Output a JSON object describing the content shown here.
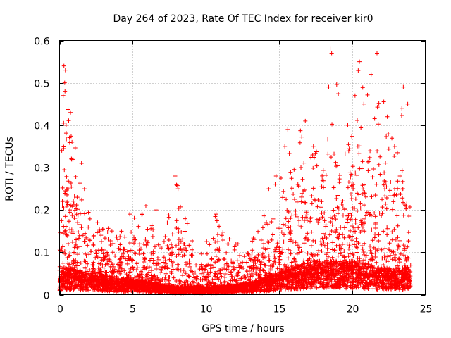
{
  "chart_data": {
    "type": "scatter",
    "title": "Day 264 of 2023, Rate Of TEC Index for receiver kir0",
    "xlabel": "GPS time / hours",
    "ylabel": "ROTI / TECUs",
    "xlim": [
      0,
      25
    ],
    "ylim": [
      0,
      0.6
    ],
    "xticks": [
      "0",
      "5",
      "10",
      "15",
      "20",
      "25"
    ],
    "yticks": [
      "0",
      "0.1",
      "0.2",
      "0.3",
      "0.4",
      "0.5",
      "0.6"
    ],
    "grid": true,
    "marker": "plus",
    "color": "#ff0000",
    "density_profile": [
      {
        "x": 0.0,
        "base": 0.03,
        "upper": 0.2
      },
      {
        "x": 0.3,
        "base": 0.04,
        "upper": 0.52
      },
      {
        "x": 0.8,
        "base": 0.04,
        "upper": 0.42
      },
      {
        "x": 1.5,
        "base": 0.035,
        "upper": 0.25
      },
      {
        "x": 2.5,
        "base": 0.03,
        "upper": 0.16
      },
      {
        "x": 4.0,
        "base": 0.025,
        "upper": 0.16
      },
      {
        "x": 5.9,
        "base": 0.02,
        "upper": 0.21
      },
      {
        "x": 7.0,
        "base": 0.015,
        "upper": 0.12
      },
      {
        "x": 8.0,
        "base": 0.012,
        "upper": 0.27
      },
      {
        "x": 9.5,
        "base": 0.012,
        "upper": 0.09
      },
      {
        "x": 10.7,
        "base": 0.012,
        "upper": 0.19
      },
      {
        "x": 12.0,
        "base": 0.015,
        "upper": 0.13
      },
      {
        "x": 13.5,
        "base": 0.02,
        "upper": 0.15
      },
      {
        "x": 14.5,
        "base": 0.03,
        "upper": 0.25
      },
      {
        "x": 15.5,
        "base": 0.04,
        "upper": 0.33
      },
      {
        "x": 16.5,
        "base": 0.045,
        "upper": 0.4
      },
      {
        "x": 17.5,
        "base": 0.05,
        "upper": 0.35
      },
      {
        "x": 18.5,
        "base": 0.05,
        "upper": 0.58
      },
      {
        "x": 19.5,
        "base": 0.05,
        "upper": 0.4
      },
      {
        "x": 20.5,
        "base": 0.05,
        "upper": 0.55
      },
      {
        "x": 21.7,
        "base": 0.04,
        "upper": 0.57
      },
      {
        "x": 22.5,
        "base": 0.04,
        "upper": 0.4
      },
      {
        "x": 23.5,
        "base": 0.04,
        "upper": 0.47
      },
      {
        "x": 24.0,
        "base": 0.04,
        "upper": 0.2
      }
    ],
    "points": [
      [
        0.15,
        0.34
      ],
      [
        0.25,
        0.47
      ],
      [
        0.3,
        0.54
      ],
      [
        0.35,
        0.5
      ],
      [
        0.4,
        0.53
      ],
      [
        0.2,
        0.22
      ],
      [
        0.45,
        0.4
      ],
      [
        0.6,
        0.25
      ],
      [
        0.75,
        0.43
      ],
      [
        0.85,
        0.36
      ],
      [
        1.2,
        0.23
      ],
      [
        1.5,
        0.31
      ],
      [
        1.7,
        0.25
      ],
      [
        2.6,
        0.17
      ],
      [
        4.8,
        0.19
      ],
      [
        5.9,
        0.21
      ],
      [
        6.6,
        0.2
      ],
      [
        7.9,
        0.28
      ],
      [
        8.1,
        0.25
      ],
      [
        8.5,
        0.12
      ],
      [
        10.7,
        0.19
      ],
      [
        11.1,
        0.14
      ],
      [
        12.2,
        0.12
      ],
      [
        13.3,
        0.13
      ],
      [
        14.3,
        0.25
      ],
      [
        14.8,
        0.28
      ],
      [
        15.4,
        0.35
      ],
      [
        15.6,
        0.39
      ],
      [
        16.5,
        0.3
      ],
      [
        16.8,
        0.41
      ],
      [
        17.3,
        0.33
      ],
      [
        18.5,
        0.58
      ],
      [
        18.6,
        0.57
      ],
      [
        18.4,
        0.49
      ],
      [
        19.7,
        0.4
      ],
      [
        20.2,
        0.47
      ],
      [
        20.5,
        0.55
      ],
      [
        20.8,
        0.45
      ],
      [
        21.3,
        0.52
      ],
      [
        21.7,
        0.57
      ],
      [
        22.4,
        0.42
      ],
      [
        22.9,
        0.35
      ],
      [
        23.4,
        0.44
      ],
      [
        23.5,
        0.49
      ],
      [
        23.8,
        0.45
      ]
    ]
  }
}
